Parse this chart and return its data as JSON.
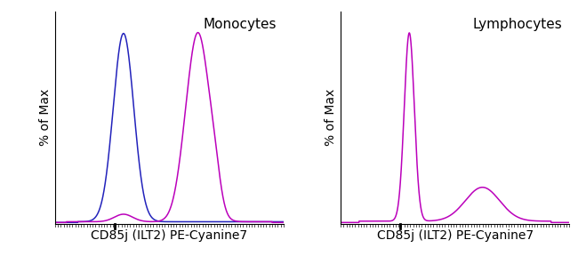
{
  "panel1_title": "Monocytes",
  "panel2_title": "Lymphocytes",
  "xlabel": "CD85j (ILT2) PE-Cyanine7",
  "ylabel": "% of Max",
  "color_blue": "#2222bb",
  "color_magenta": "#bb00bb",
  "background_color": "#ffffff",
  "title_fontsize": 11,
  "label_fontsize": 10,
  "linewidth": 1.1
}
